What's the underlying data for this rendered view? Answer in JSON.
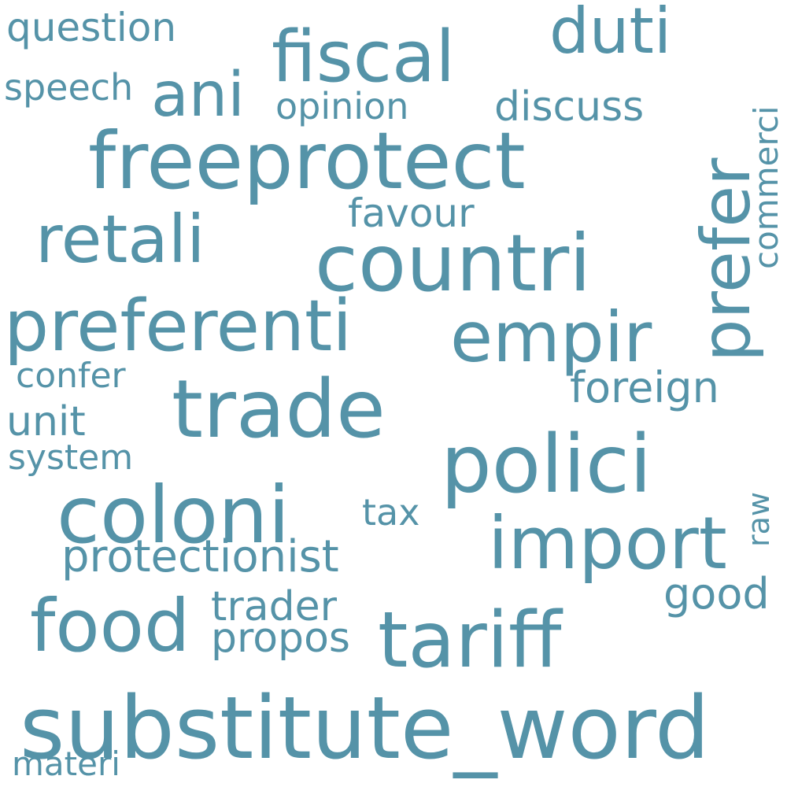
{
  "colors": {
    "background": "#ffffff",
    "word": "#5593a8"
  },
  "words": [
    {
      "text": "substitute_word",
      "orientation": "horizontal"
    },
    {
      "text": "freeprotect",
      "orientation": "horizontal"
    },
    {
      "text": "countri",
      "orientation": "horizontal"
    },
    {
      "text": "trade",
      "orientation": "horizontal"
    },
    {
      "text": "polici",
      "orientation": "horizontal"
    },
    {
      "text": "coloni",
      "orientation": "horizontal"
    },
    {
      "text": "tariff",
      "orientation": "horizontal"
    },
    {
      "text": "preferenti",
      "orientation": "horizontal"
    },
    {
      "text": "import",
      "orientation": "horizontal"
    },
    {
      "text": "food",
      "orientation": "horizontal"
    },
    {
      "text": "empir",
      "orientation": "horizontal"
    },
    {
      "text": "retali",
      "orientation": "horizontal"
    },
    {
      "text": "fiscal",
      "orientation": "horizontal"
    },
    {
      "text": "prefer",
      "orientation": "vertical"
    },
    {
      "text": "duti",
      "orientation": "horizontal"
    },
    {
      "text": "ani",
      "orientation": "horizontal"
    },
    {
      "text": "protectionist",
      "orientation": "horizontal"
    },
    {
      "text": "foreign",
      "orientation": "horizontal"
    },
    {
      "text": "trader",
      "orientation": "horizontal"
    },
    {
      "text": "propos",
      "orientation": "horizontal"
    },
    {
      "text": "discuss",
      "orientation": "horizontal"
    },
    {
      "text": "good",
      "orientation": "horizontal"
    },
    {
      "text": "favour",
      "orientation": "horizontal"
    },
    {
      "text": "question",
      "orientation": "horizontal"
    },
    {
      "text": "commerci",
      "orientation": "vertical"
    },
    {
      "text": "opinion",
      "orientation": "horizontal"
    },
    {
      "text": "speech",
      "orientation": "horizontal"
    },
    {
      "text": "unit",
      "orientation": "horizontal"
    },
    {
      "text": "tax",
      "orientation": "horizontal"
    },
    {
      "text": "confer",
      "orientation": "horizontal"
    },
    {
      "text": "system",
      "orientation": "horizontal"
    },
    {
      "text": "materi",
      "orientation": "horizontal"
    },
    {
      "text": "raw",
      "orientation": "vertical"
    }
  ]
}
